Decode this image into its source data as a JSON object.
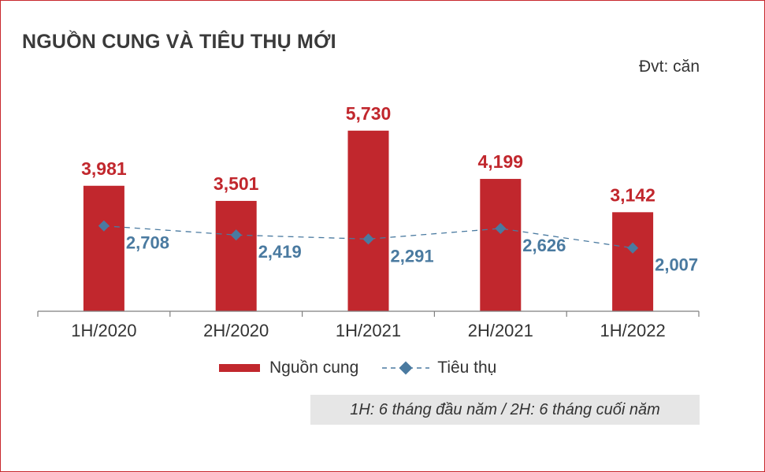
{
  "title": "NGUỒN CUNG VÀ TIÊU THỤ MỚI",
  "unit_label": "Đvt: căn",
  "note": "1H: 6 tháng đầu năm / 2H: 6 tháng cuối năm",
  "colors": {
    "supply": "#c1272d",
    "consumption": "#4a7aa0",
    "axis": "#7f7f7f"
  },
  "chart_data": {
    "type": "bar",
    "categories": [
      "1H/2020",
      "2H/2020",
      "1H/2021",
      "2H/2021",
      "1H/2022"
    ],
    "series": [
      {
        "name": "Nguồn cung",
        "type": "bar",
        "values": [
          3981,
          3501,
          5730,
          4199,
          3142
        ],
        "labels": [
          "3,981",
          "3,501",
          "5,730",
          "4,199",
          "3,142"
        ]
      },
      {
        "name": "Tiêu thụ",
        "type": "line",
        "style": "dashed",
        "marker": "diamond",
        "values": [
          2708,
          2419,
          2291,
          2626,
          2007
        ],
        "labels": [
          "2,708",
          "2,419",
          "2,291",
          "2,626",
          "2,007"
        ]
      }
    ],
    "ylim": [
      0,
      7000
    ],
    "grid": false,
    "legend": "bottom"
  }
}
